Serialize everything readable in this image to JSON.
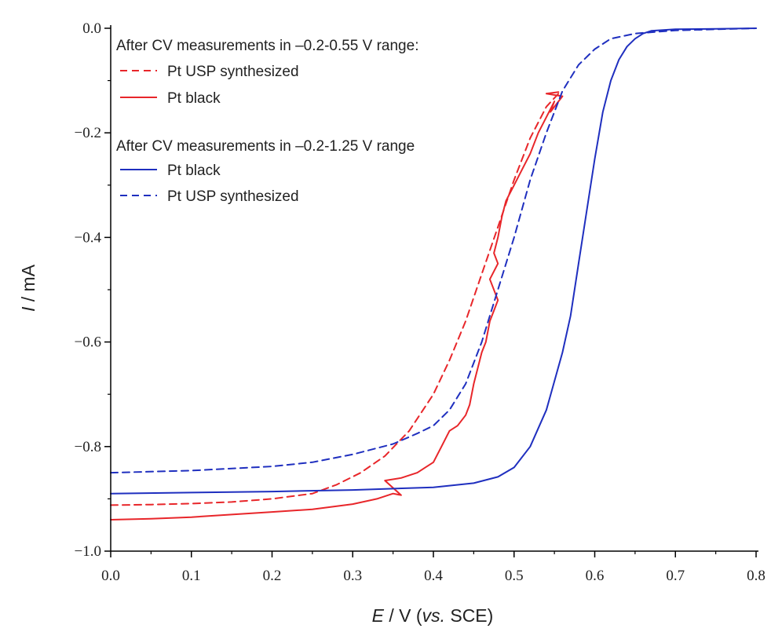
{
  "chart_data": {
    "type": "line",
    "xlabel": {
      "var": "E",
      "rest": " / V (",
      "italic": "vs.",
      "end": " SCE)"
    },
    "ylabel": {
      "var": "I",
      "rest": " / mA"
    },
    "xlim": [
      0.0,
      0.8
    ],
    "ylim": [
      -1.0,
      0.0
    ],
    "xticks": [
      "0.0",
      "0.1",
      "0.2",
      "0.3",
      "0.4",
      "0.5",
      "0.6",
      "0.7",
      "0.8"
    ],
    "yticks": [
      "0.0",
      "−0.2",
      "−0.4",
      "−0.6",
      "−0.8",
      "−1.0"
    ],
    "grid": false,
    "legend_placement": "top-left",
    "legend": {
      "group1_title": "After CV measurements in –0.2-0.55 V range:",
      "group2_title": "After CV measurements in –0.2-1.25 V range",
      "entries": [
        {
          "name": "Pt USP synthesized",
          "color": "#e8262a",
          "dash": true
        },
        {
          "name": "Pt black",
          "color": "#e8262a",
          "dash": false
        },
        {
          "name": "Pt black",
          "color": "#1f2fbf",
          "dash": false
        },
        {
          "name": "Pt USP synthesized",
          "color": "#1f2fbf",
          "dash": true
        }
      ]
    },
    "series": [
      {
        "group": "After CV measurements in –0.2-0.55 V range:",
        "name": "Pt USP synthesized",
        "color": "#e8262a",
        "dash": true,
        "x": [
          0.0,
          0.05,
          0.1,
          0.15,
          0.2,
          0.25,
          0.28,
          0.31,
          0.34,
          0.37,
          0.4,
          0.42,
          0.44,
          0.46,
          0.48,
          0.5,
          0.52,
          0.54,
          0.555
        ],
        "y": [
          -0.912,
          -0.911,
          -0.909,
          -0.906,
          -0.9,
          -0.89,
          -0.873,
          -0.85,
          -0.818,
          -0.77,
          -0.7,
          -0.635,
          -0.56,
          -0.47,
          -0.38,
          -0.29,
          -0.21,
          -0.15,
          -0.125
        ]
      },
      {
        "group": "After CV measurements in –0.2-0.55 V range:",
        "name": "Pt black",
        "color": "#e8262a",
        "dash": false,
        "x": [
          0.0,
          0.05,
          0.1,
          0.15,
          0.2,
          0.25,
          0.3,
          0.33,
          0.35,
          0.36,
          0.34,
          0.36,
          0.38,
          0.39,
          0.4,
          0.41,
          0.42,
          0.43,
          0.44,
          0.445,
          0.45,
          0.455,
          0.46,
          0.465,
          0.47,
          0.475,
          0.48,
          0.47,
          0.48,
          0.475,
          0.48,
          0.485,
          0.49,
          0.5,
          0.51,
          0.52,
          0.53,
          0.54,
          0.55,
          0.545,
          0.56,
          0.54,
          0.555
        ],
        "y": [
          -0.94,
          -0.938,
          -0.935,
          -0.93,
          -0.925,
          -0.92,
          -0.91,
          -0.9,
          -0.89,
          -0.893,
          -0.865,
          -0.86,
          -0.85,
          -0.84,
          -0.83,
          -0.8,
          -0.77,
          -0.76,
          -0.74,
          -0.72,
          -0.68,
          -0.65,
          -0.62,
          -0.6,
          -0.56,
          -0.54,
          -0.52,
          -0.48,
          -0.45,
          -0.43,
          -0.4,
          -0.36,
          -0.33,
          -0.3,
          -0.27,
          -0.24,
          -0.2,
          -0.17,
          -0.14,
          -0.16,
          -0.13,
          -0.125,
          -0.122
        ]
      },
      {
        "group": "After CV measurements in –0.2-1.25 V range",
        "name": "Pt black",
        "color": "#1f2fbf",
        "dash": false,
        "x": [
          0.0,
          0.1,
          0.2,
          0.3,
          0.4,
          0.45,
          0.48,
          0.5,
          0.52,
          0.54,
          0.56,
          0.57,
          0.58,
          0.59,
          0.6,
          0.61,
          0.62,
          0.63,
          0.64,
          0.65,
          0.66,
          0.67,
          0.7,
          0.75,
          0.8
        ],
        "y": [
          -0.89,
          -0.888,
          -0.886,
          -0.883,
          -0.878,
          -0.87,
          -0.858,
          -0.84,
          -0.8,
          -0.73,
          -0.62,
          -0.55,
          -0.45,
          -0.35,
          -0.25,
          -0.16,
          -0.1,
          -0.06,
          -0.035,
          -0.02,
          -0.01,
          -0.005,
          -0.002,
          -0.001,
          0.0
        ]
      },
      {
        "group": "After CV measurements in –0.2-1.25 V range",
        "name": "Pt USP synthesized",
        "color": "#1f2fbf",
        "dash": true,
        "x": [
          0.0,
          0.1,
          0.2,
          0.25,
          0.3,
          0.35,
          0.38,
          0.4,
          0.42,
          0.44,
          0.46,
          0.48,
          0.5,
          0.52,
          0.54,
          0.56,
          0.58,
          0.6,
          0.62,
          0.65,
          0.7,
          0.8
        ],
        "y": [
          -0.85,
          -0.846,
          -0.838,
          -0.83,
          -0.815,
          -0.795,
          -0.775,
          -0.76,
          -0.73,
          -0.68,
          -0.6,
          -0.5,
          -0.4,
          -0.29,
          -0.2,
          -0.12,
          -0.07,
          -0.04,
          -0.02,
          -0.01,
          -0.004,
          0.0
        ]
      }
    ]
  }
}
